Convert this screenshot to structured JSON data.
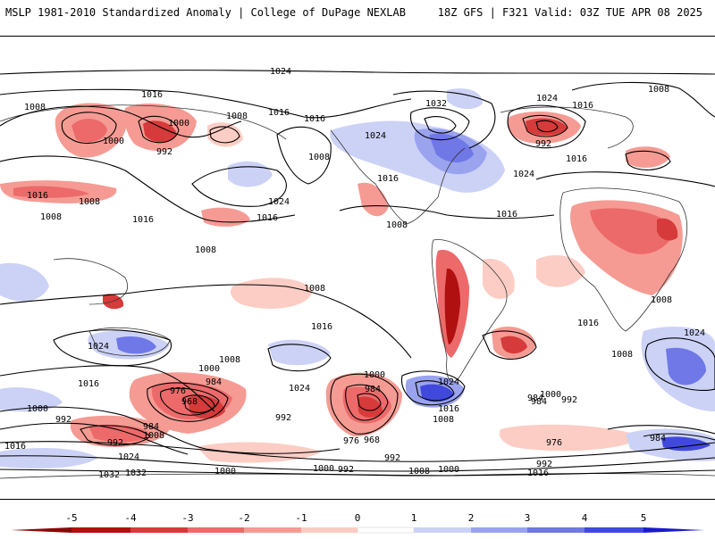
{
  "header": {
    "title": "MSLP 1981-2010 Standardized Anomaly | College of DuPage NEXLAB",
    "run_info": "18Z GFS | F321 Valid: 03Z TUE APR 08 2025"
  },
  "colors": {
    "neg_strong": "#b01010",
    "neg_4": "#d63a3a",
    "neg_3": "#ec6a6a",
    "neg_2": "#f59b93",
    "neg_1": "#fbcdc4",
    "pos_1": "#ccd2f6",
    "pos_2": "#9aa3ee",
    "pos_3": "#6f78e6",
    "pos_4": "#4149dd",
    "pos_strong": "#1a1acc",
    "contour": "#000000",
    "land_border": "#333333"
  },
  "isobar_labels": [
    {
      "text": "1024"
    },
    {
      "text": "1016"
    },
    {
      "text": "1008"
    },
    {
      "text": "1000"
    },
    {
      "text": "992"
    },
    {
      "text": "1016"
    },
    {
      "text": "1008"
    },
    {
      "text": "1016"
    },
    {
      "text": "1032"
    },
    {
      "text": "1024"
    },
    {
      "text": "1008"
    },
    {
      "text": "1000"
    },
    {
      "text": "992"
    },
    {
      "text": "1016"
    },
    {
      "text": "1024"
    },
    {
      "text": "1008"
    },
    {
      "text": "1016"
    },
    {
      "text": "1008"
    },
    {
      "text": "1016"
    },
    {
      "text": "1008"
    },
    {
      "text": "1008"
    },
    {
      "text": "1024"
    },
    {
      "text": "1016"
    },
    {
      "text": "1016"
    },
    {
      "text": "1008"
    },
    {
      "text": "1008"
    },
    {
      "text": "1016"
    },
    {
      "text": "1024"
    },
    {
      "text": "1016"
    },
    {
      "text": "1024"
    },
    {
      "text": "1008"
    },
    {
      "text": "1016"
    },
    {
      "text": "1000"
    },
    {
      "text": "992"
    },
    {
      "text": "1000"
    },
    {
      "text": "976"
    },
    {
      "text": "968"
    },
    {
      "text": "984"
    },
    {
      "text": "992"
    },
    {
      "text": "1024"
    },
    {
      "text": "1016"
    },
    {
      "text": "1000"
    },
    {
      "text": "984"
    },
    {
      "text": "976"
    },
    {
      "text": "968"
    },
    {
      "text": "1024"
    },
    {
      "text": "1016"
    },
    {
      "text": "1008"
    },
    {
      "text": "1000"
    },
    {
      "text": "992"
    },
    {
      "text": "984"
    },
    {
      "text": "992"
    },
    {
      "text": "1008"
    },
    {
      "text": "992"
    },
    {
      "text": "1000"
    },
    {
      "text": "1008"
    },
    {
      "text": "1032"
    },
    {
      "text": "1024"
    },
    {
      "text": "984"
    },
    {
      "text": "992"
    },
    {
      "text": "1016"
    },
    {
      "text": "1000"
    },
    {
      "text": "1008"
    },
    {
      "text": "984"
    },
    {
      "text": "976"
    },
    {
      "text": "1024"
    },
    {
      "text": "984"
    },
    {
      "text": "1032"
    },
    {
      "text": "1016"
    },
    {
      "text": "1000"
    },
    {
      "text": "992"
    },
    {
      "text": "1016"
    },
    {
      "text": "1008"
    }
  ],
  "colorbar": {
    "ticks": [
      "-5",
      "-4",
      "-3",
      "-2",
      "-1",
      "0",
      "1",
      "2",
      "3",
      "4",
      "5"
    ],
    "range": [
      -5,
      5
    ]
  }
}
